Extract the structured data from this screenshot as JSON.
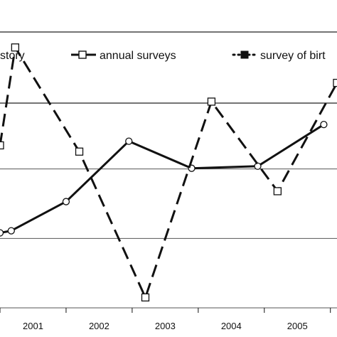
{
  "chart_data": {
    "type": "line",
    "title": "",
    "xlabel": "",
    "ylabel": "",
    "x_ticks": [
      "2001",
      "2002",
      "2003",
      "2004",
      "2005"
    ],
    "x_domain": [
      2000.5,
      2005.6
    ],
    "y_domain": [
      0,
      10
    ],
    "grid": "horizontal",
    "legend": {
      "placement": "top",
      "items": [
        "story",
        "annual surveys",
        "survey of birt"
      ]
    },
    "series": [
      {
        "name": "annual surveys",
        "style": "solid",
        "marker": "circle",
        "x": [
          2000.5,
          2000.67,
          2001.5,
          2002.45,
          2003.4,
          2004.4,
          2005.4
        ],
        "y": [
          3.6,
          3.7,
          5.1,
          8.0,
          6.7,
          6.8,
          8.8
        ]
      },
      {
        "name": "story",
        "style": "dashed",
        "marker": "square",
        "x": [
          2000.5,
          2000.73,
          2001.7,
          2002.7,
          2003.7,
          2004.7,
          2005.6
        ],
        "y": [
          7.8,
          12.5,
          7.5,
          0.5,
          9.9,
          5.6,
          10.8
        ]
      }
    ],
    "colors": {
      "line": "#111111",
      "grid": "#555555",
      "background": "#ffffff"
    }
  }
}
